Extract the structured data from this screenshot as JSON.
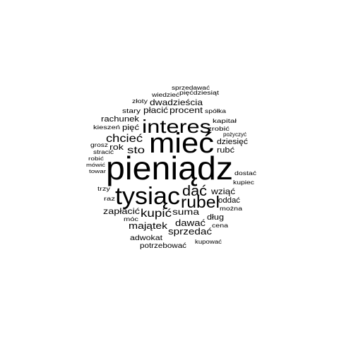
{
  "word_cloud": {
    "text_color": "#000000",
    "background_color": "#ffffff",
    "words": [
      "pieniądz",
      "mieć",
      "tysiąc",
      "interes",
      "rubel",
      "dać",
      "chcieć",
      "kupić",
      "sto",
      "majątek",
      "sprzedać",
      "dawać",
      "zapłacić",
      "suma",
      "wziąć",
      "płacić",
      "procent",
      "dwadzieścia",
      "rachunek",
      "pięć",
      "rok",
      "rubć",
      "dziesięć",
      "oddać",
      "dług",
      "adwokat",
      "potrzebować",
      "stary",
      "sprzedawać",
      "wiedzieć",
      "pięćdziesiąt",
      "złoty",
      "spółka",
      "kapitał",
      "zrobić",
      "pożyczyć",
      "kieszeń",
      "grosz",
      "stracić",
      "robić",
      "mówić",
      "towar",
      "trzy",
      "raz",
      "móc",
      "można",
      "dostać",
      "kupiec",
      "cena",
      "kupować"
    ]
  }
}
